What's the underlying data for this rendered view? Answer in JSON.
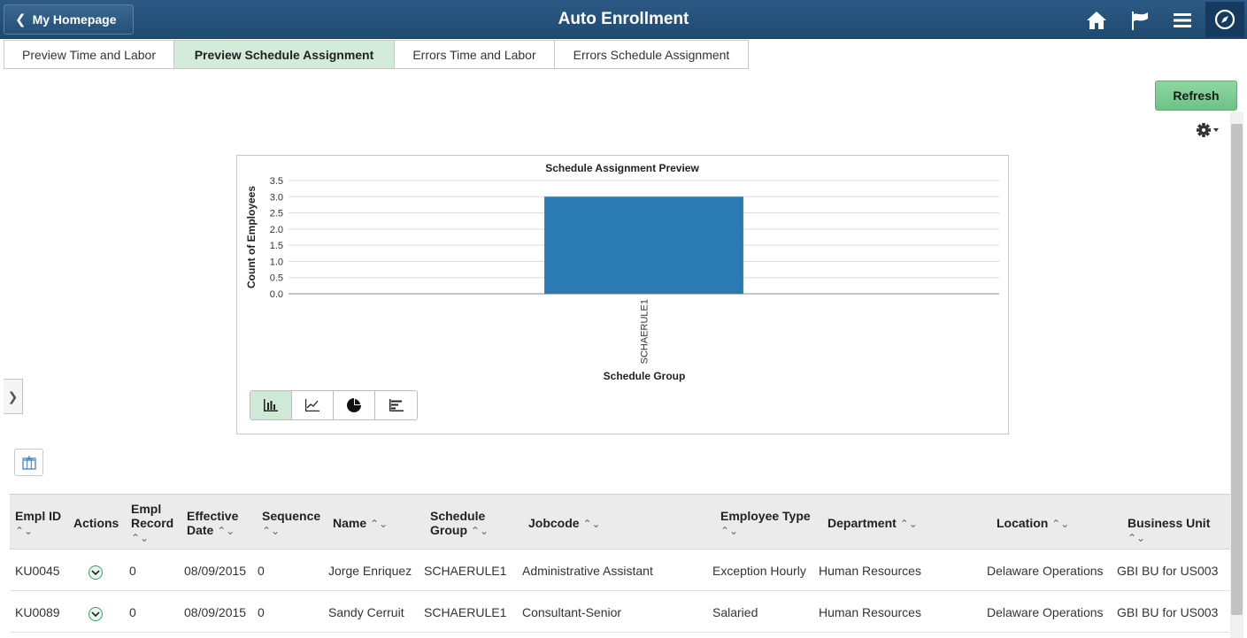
{
  "header": {
    "back_label": "My Homepage",
    "title": "Auto Enrollment",
    "icons": [
      "home-icon",
      "flag-icon",
      "menu-icon",
      "compass-icon"
    ]
  },
  "tabs": [
    {
      "label": "Preview Time and Labor",
      "active": false
    },
    {
      "label": "Preview Schedule Assignment",
      "active": true
    },
    {
      "label": "Errors Time and Labor",
      "active": false
    },
    {
      "label": "Errors Schedule Assignment",
      "active": false
    }
  ],
  "toolbar": {
    "refresh_label": "Refresh"
  },
  "chart_data": {
    "type": "bar",
    "title": "Schedule Assignment Preview",
    "xlabel": "Schedule Group",
    "ylabel": "Count of Employees",
    "categories": [
      "SCHAERULE1"
    ],
    "values": [
      3
    ],
    "ylim": [
      0,
      3.5
    ],
    "yticks": [
      "0.0",
      "0.5",
      "1.0",
      "1.5",
      "2.0",
      "2.5",
      "3.0",
      "3.5"
    ],
    "grid": true,
    "bar_color": "#2a7ab3"
  },
  "chart_types": [
    "bar-chart-icon",
    "line-chart-icon",
    "pie-chart-icon",
    "horizontal-bar-icon"
  ],
  "table": {
    "columns": [
      {
        "label1": "Empl ID",
        "label2": ""
      },
      {
        "label1": "Actions",
        "label2": ""
      },
      {
        "label1": "Empl",
        "label2": "Record"
      },
      {
        "label1": "Effective",
        "label2": "Date"
      },
      {
        "label1": "Sequence",
        "label2": ""
      },
      {
        "label1": "Name",
        "label2": ""
      },
      {
        "label1": "Schedule",
        "label2": "Group"
      },
      {
        "label1": "Jobcode",
        "label2": ""
      },
      {
        "label1": "Employee Type",
        "label2": ""
      },
      {
        "label1": "Department",
        "label2": ""
      },
      {
        "label1": "Location",
        "label2": ""
      },
      {
        "label1": "Business Unit",
        "label2": ""
      }
    ],
    "rows": [
      {
        "empl_id": "KU0045",
        "empl_record": "0",
        "effective_date": "08/09/2015",
        "sequence": "0",
        "name": "Jorge Enriquez",
        "schedule_group": "SCHAERULE1",
        "jobcode": "Administrative Assistant",
        "employee_type": "Exception Hourly",
        "department": "Human Resources",
        "location": "Delaware Operations",
        "business_unit": "GBI BU for US003"
      },
      {
        "empl_id": "KU0089",
        "empl_record": "0",
        "effective_date": "08/09/2015",
        "sequence": "0",
        "name": "Sandy Cerruit",
        "schedule_group": "SCHAERULE1",
        "jobcode": "Consultant-Senior",
        "employee_type": "Salaried",
        "department": "Human Resources",
        "location": "Delaware Operations",
        "business_unit": "GBI BU for US003"
      }
    ]
  }
}
